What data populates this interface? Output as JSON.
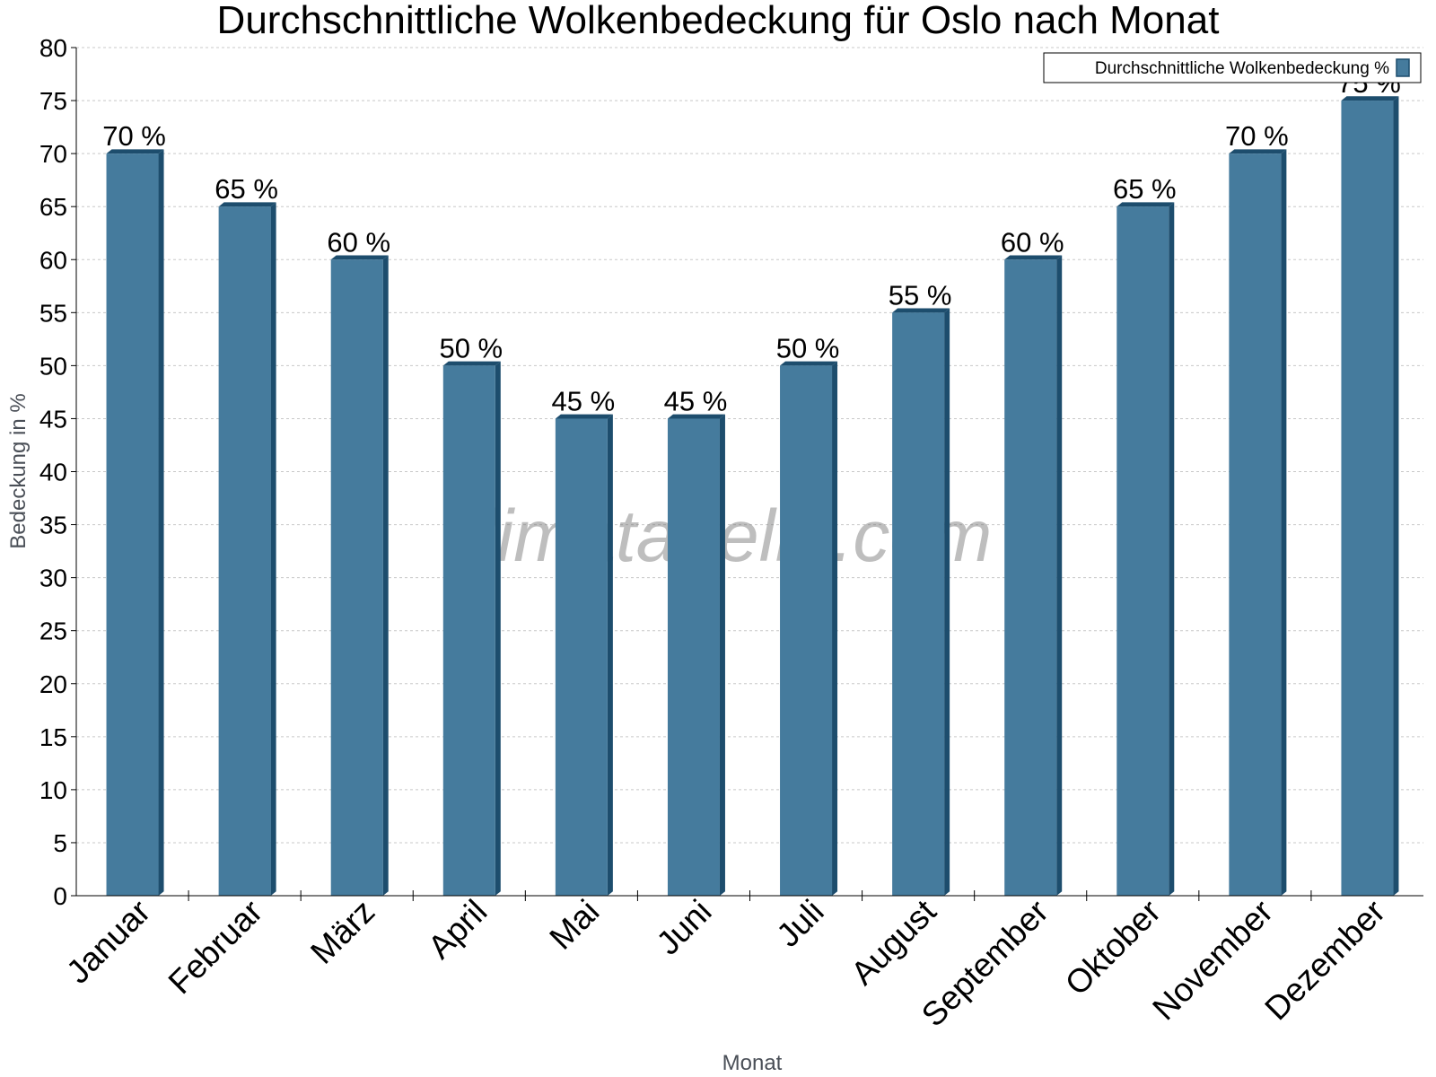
{
  "chart_data": {
    "type": "bar",
    "title": "Durchschnittliche Wolkenbedeckung für Oslo nach Monat",
    "xlabel": "Monat",
    "ylabel": "Bedeckung in %",
    "categories": [
      "Januar",
      "Februar",
      "März",
      "April",
      "Mai",
      "Juni",
      "Juli",
      "August",
      "September",
      "Oktober",
      "November",
      "Dezember"
    ],
    "series": [
      {
        "name": "Durchschnittliche Wolkenbedeckung %",
        "values": [
          70,
          65,
          60,
          50,
          45,
          45,
          50,
          55,
          60,
          65,
          70,
          75
        ],
        "labels": [
          "70 %",
          "65 %",
          "60 %",
          "50 %",
          "45 %",
          "45 %",
          "50 %",
          "55 %",
          "60 %",
          "65 %",
          "70 %",
          "75 %"
        ]
      }
    ],
    "ylim": [
      0,
      80
    ],
    "yticks": [
      "0",
      "5",
      "10",
      "15",
      "20",
      "25",
      "30",
      "35",
      "40",
      "45",
      "50",
      "55",
      "60",
      "65",
      "70",
      "75",
      "80"
    ],
    "grid": true,
    "legend_position": "top-right",
    "colors": {
      "bar": "#457b9d",
      "bar_side": "#1d4d6d",
      "gridline": "#c8c8c8"
    },
    "watermark": "klimatabelle.com"
  }
}
